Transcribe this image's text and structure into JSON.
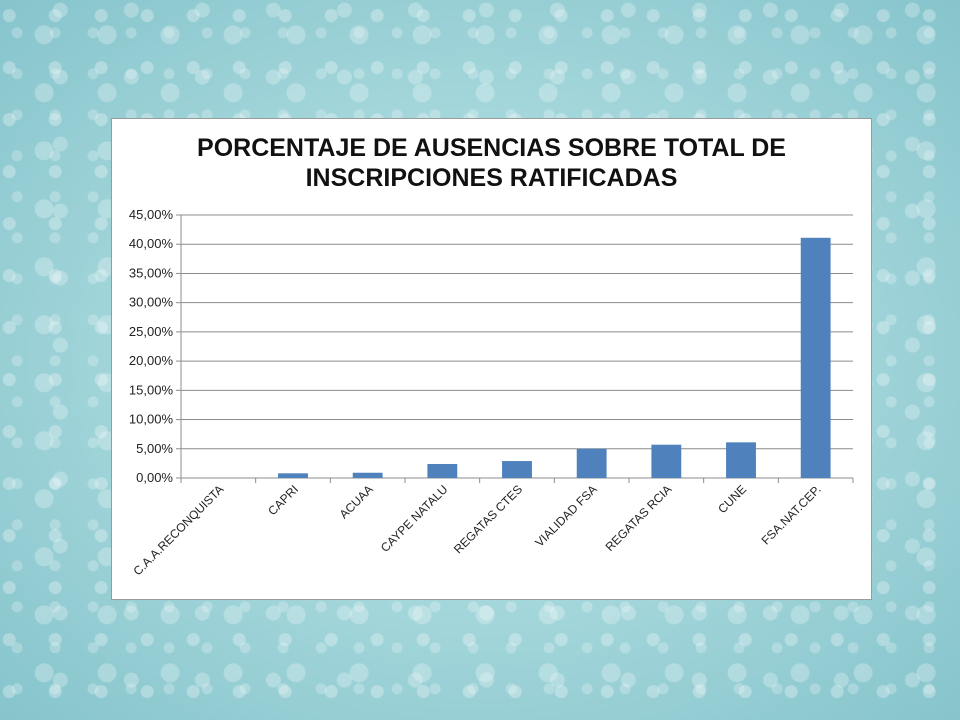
{
  "chart_data": {
    "type": "bar",
    "title_lines": [
      "PORCENTAJE DE AUSENCIAS SOBRE TOTAL DE",
      "INSCRIPCIONES RATIFICADAS"
    ],
    "categories": [
      "C.A.A.RECONQUISTA",
      "CAPRI",
      "ACUAA",
      "CAYPE NATALU",
      "REGATAS CTES",
      "VIALIDAD FSA",
      "REGATAS RCIA",
      "CUNE",
      "FSA.NAT.CEP."
    ],
    "values": [
      0,
      0.8,
      0.9,
      2.4,
      2.9,
      5.0,
      5.7,
      6.1,
      41.1
    ],
    "yticks": [
      "0,00%",
      "5,00%",
      "10,00%",
      "15,00%",
      "20,00%",
      "25,00%",
      "30,00%",
      "35,00%",
      "40,00%",
      "45,00%"
    ],
    "ylim": [
      0,
      45
    ],
    "grid": true,
    "legend": "none",
    "bar_color": "#4f81bd"
  }
}
